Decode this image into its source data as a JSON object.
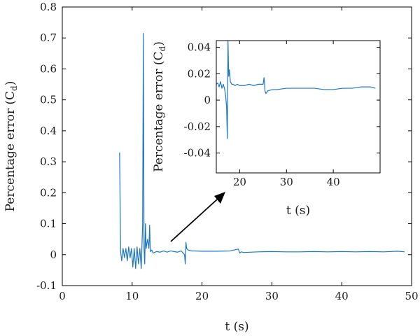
{
  "chart_data": [
    {
      "type": "line",
      "title": "",
      "xlabel": "t (s)",
      "ylabel": "Percentage error (C",
      "ylabel_sub": "d",
      "ylabel_close": ")",
      "xlim": [
        0,
        50
      ],
      "ylim": [
        -0.1,
        0.8
      ],
      "xticks": [
        0,
        10,
        20,
        30,
        40,
        50
      ],
      "xtick_labels": [
        "0",
        "10",
        "20",
        "30",
        "40",
        "50"
      ],
      "yticks": [
        -0.1,
        0,
        0.1,
        0.2,
        0.3,
        0.4,
        0.5,
        0.6,
        0.7,
        0.8
      ],
      "ytick_labels": [
        "-0.1",
        "0",
        "0.1",
        "0.2",
        "0.3",
        "0.4",
        "0.5",
        "0.6",
        "0.7",
        "0.8"
      ],
      "grid": false,
      "color": "#1f77c4",
      "series": [
        {
          "x": [
            8.2,
            8.35,
            8.5,
            8.7,
            8.9,
            9.1,
            9.3,
            9.5,
            9.7,
            9.9,
            10.1,
            10.3,
            10.5,
            10.7,
            10.9,
            11.1,
            11.3,
            11.5,
            11.6,
            11.7,
            11.8,
            11.9,
            12.0,
            12.2,
            12.4,
            12.5,
            12.6,
            12.8,
            13.0,
            13.5,
            14.0,
            14.5,
            15.0,
            15.5,
            16.0,
            16.5,
            17.0,
            17.3,
            17.5,
            17.6,
            17.7,
            17.8,
            18.0,
            18.5,
            19.0,
            20,
            22,
            24,
            25.2,
            25.4,
            25.6,
            26,
            28,
            30,
            32,
            34,
            36,
            38,
            40,
            42,
            44,
            46,
            48,
            49
          ],
          "y": [
            0.33,
            0.01,
            -0.02,
            0.02,
            -0.01,
            0.02,
            -0.02,
            0.025,
            -0.01,
            0.02,
            -0.04,
            0.02,
            -0.045,
            0.025,
            -0.03,
            0.02,
            -0.045,
            0.1,
            0.715,
            0.02,
            -0.03,
            0.1,
            0.02,
            0.05,
            0.02,
            0.095,
            0.01,
            0.015,
            0.005,
            0.01,
            0.008,
            0.012,
            0.008,
            0.012,
            0.01,
            0.008,
            0.012,
            0.005,
            0.0,
            -0.03,
            0.04,
            0.02,
            0.015,
            0.012,
            0.012,
            0.011,
            0.011,
            0.012,
            0.018,
            0.005,
            0.009,
            0.007,
            0.009,
            0.01,
            0.009,
            0.009,
            0.01,
            0.009,
            0.01,
            0.009,
            0.01,
            0.009,
            0.011,
            0.009
          ]
        }
      ]
    },
    {
      "type": "line",
      "title": "",
      "xlabel": "t (s)",
      "ylabel": "Percentage error (C",
      "ylabel_sub": "d",
      "ylabel_close": ")",
      "xlim": [
        15,
        50
      ],
      "ylim": [
        -0.055,
        0.045
      ],
      "xticks": [
        20,
        30,
        40
      ],
      "xtick_labels": [
        "20",
        "30",
        "40"
      ],
      "yticks": [
        -0.04,
        -0.02,
        0,
        0.02,
        0.04
      ],
      "ytick_labels": [
        "-0.04",
        "-0.02",
        "0",
        "0.02",
        "0.04"
      ],
      "grid": false,
      "color": "#1f77c4",
      "series": [
        {
          "x": [
            15.0,
            15.3,
            15.6,
            15.9,
            16.2,
            16.5,
            16.8,
            17.0,
            17.2,
            17.35,
            17.5,
            17.65,
            17.8,
            18.0,
            18.3,
            18.6,
            19.0,
            19.5,
            20,
            21,
            22,
            23,
            24,
            25,
            25.2,
            25.3,
            25.4,
            25.6,
            26,
            27,
            28,
            30,
            32,
            34,
            36,
            38,
            40,
            42,
            44,
            46,
            48,
            49
          ],
          "y": [
            0.012,
            0.013,
            0.01,
            0.014,
            0.009,
            0.012,
            0.008,
            0.003,
            -0.005,
            -0.029,
            0.045,
            0.018,
            0.023,
            0.014,
            0.012,
            0.012,
            0.011,
            0.012,
            0.011,
            0.011,
            0.012,
            0.011,
            0.012,
            0.012,
            0.017,
            0.013,
            0.007,
            0.005,
            0.007,
            0.008,
            0.008,
            0.009,
            0.009,
            0.009,
            0.009,
            0.008,
            0.008,
            0.009,
            0.009,
            0.01,
            0.01,
            0.009
          ]
        }
      ]
    }
  ]
}
